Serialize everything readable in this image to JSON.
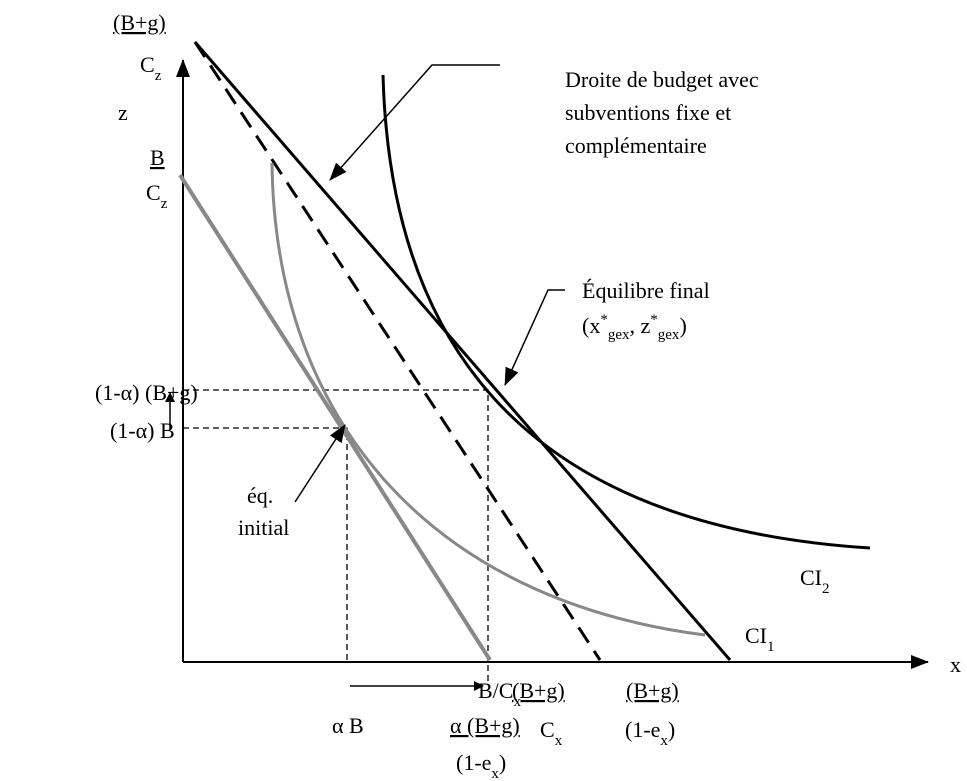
{
  "axes": {
    "x_label": "x",
    "z_label": "z"
  },
  "labels": {
    "budget_note": [
      "Droite de budget avec",
      "subventions fixe et",
      "complémentaire"
    ],
    "final_eq": {
      "title": "Équilibre final",
      "coords": [
        "(x",
        "*",
        "gex",
        ", z",
        "*",
        "gex",
        ")"
      ]
    },
    "initial_eq": [
      "éq.",
      "initial"
    ],
    "ci2": [
      "CI",
      "2"
    ],
    "ci1": [
      "CI",
      "1"
    ],
    "z_top": {
      "num": "(B+g)",
      "den": [
        "C",
        "z"
      ]
    },
    "z_b": {
      "num": "B",
      "den": [
        "C",
        "z"
      ]
    },
    "z_mid_high": "(1-α) (B+g)",
    "z_mid_low": "(1-α) B",
    "x_b": [
      "B/C",
      "x"
    ],
    "x_bg": {
      "num": "(B+g)",
      "den": [
        "C",
        "x"
      ]
    },
    "x_bg_e": {
      "num": "(B+g)",
      "den": [
        "(1-e",
        "x",
        ")"
      ]
    },
    "x_alpha_b": "α B",
    "x_alpha_bg": {
      "num": "α (B+g)",
      "den": [
        "(1-e",
        "x",
        ")"
      ]
    }
  }
}
